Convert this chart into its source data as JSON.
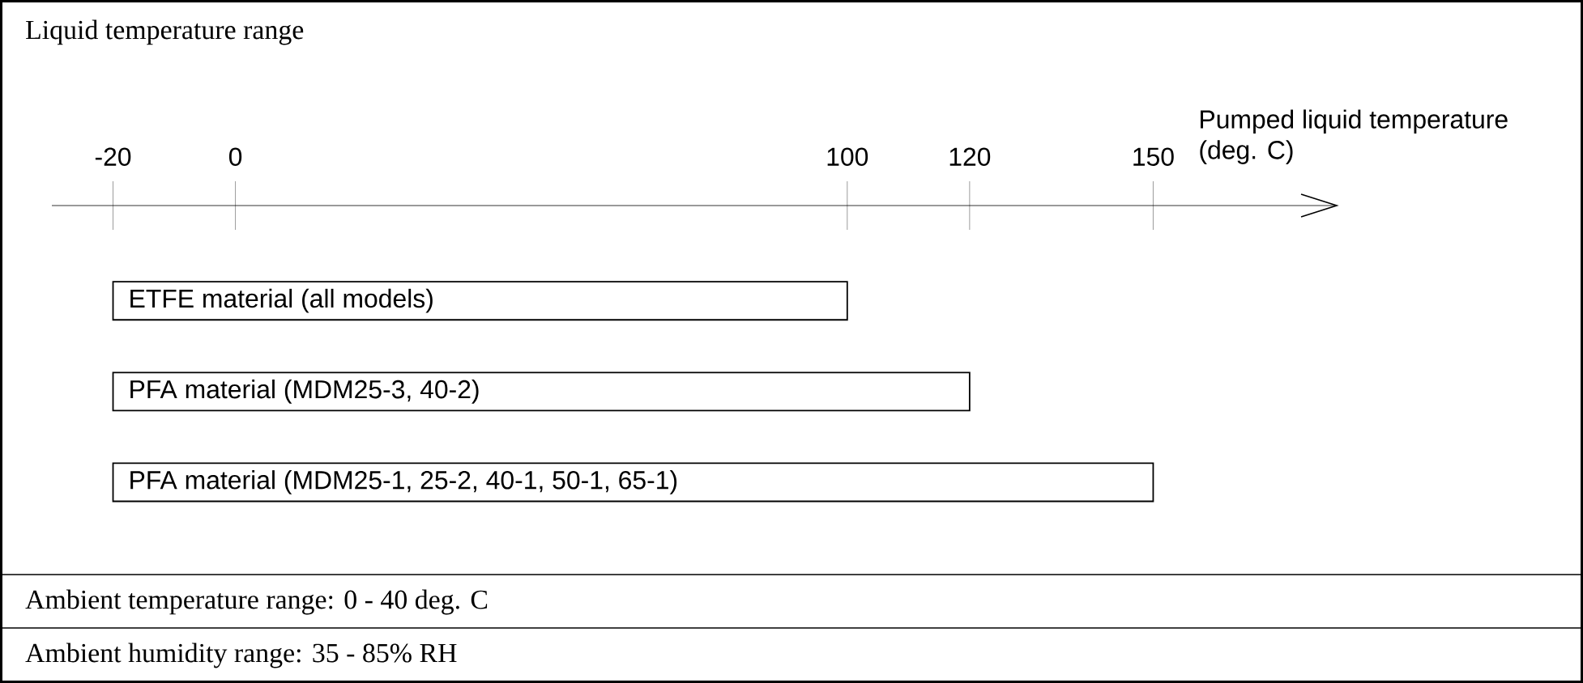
{
  "chart_data": {
    "type": "bar",
    "orientation": "horizontal",
    "title": "Liquid temperature range",
    "xlabel": "Pumped liquid temperature (deg. C)",
    "categories": [
      "ETFE material (all models)",
      "PFA material (MDM25-3, 40-2)",
      "PFA material (MDM25-1, 25-2, 40-1, 50-1, 65-1)"
    ],
    "base": [
      -20,
      -20,
      -20
    ],
    "values": [
      120,
      140,
      170
    ],
    "color": "#ffffff",
    "xlim": [
      -30,
      180
    ],
    "xticks": [
      -20,
      0,
      100,
      120,
      150
    ],
    "annotations": [
      "Ambient temperature range: 0 - 40 deg. C",
      "Ambient humidity range: 35 - 85% RH"
    ]
  }
}
